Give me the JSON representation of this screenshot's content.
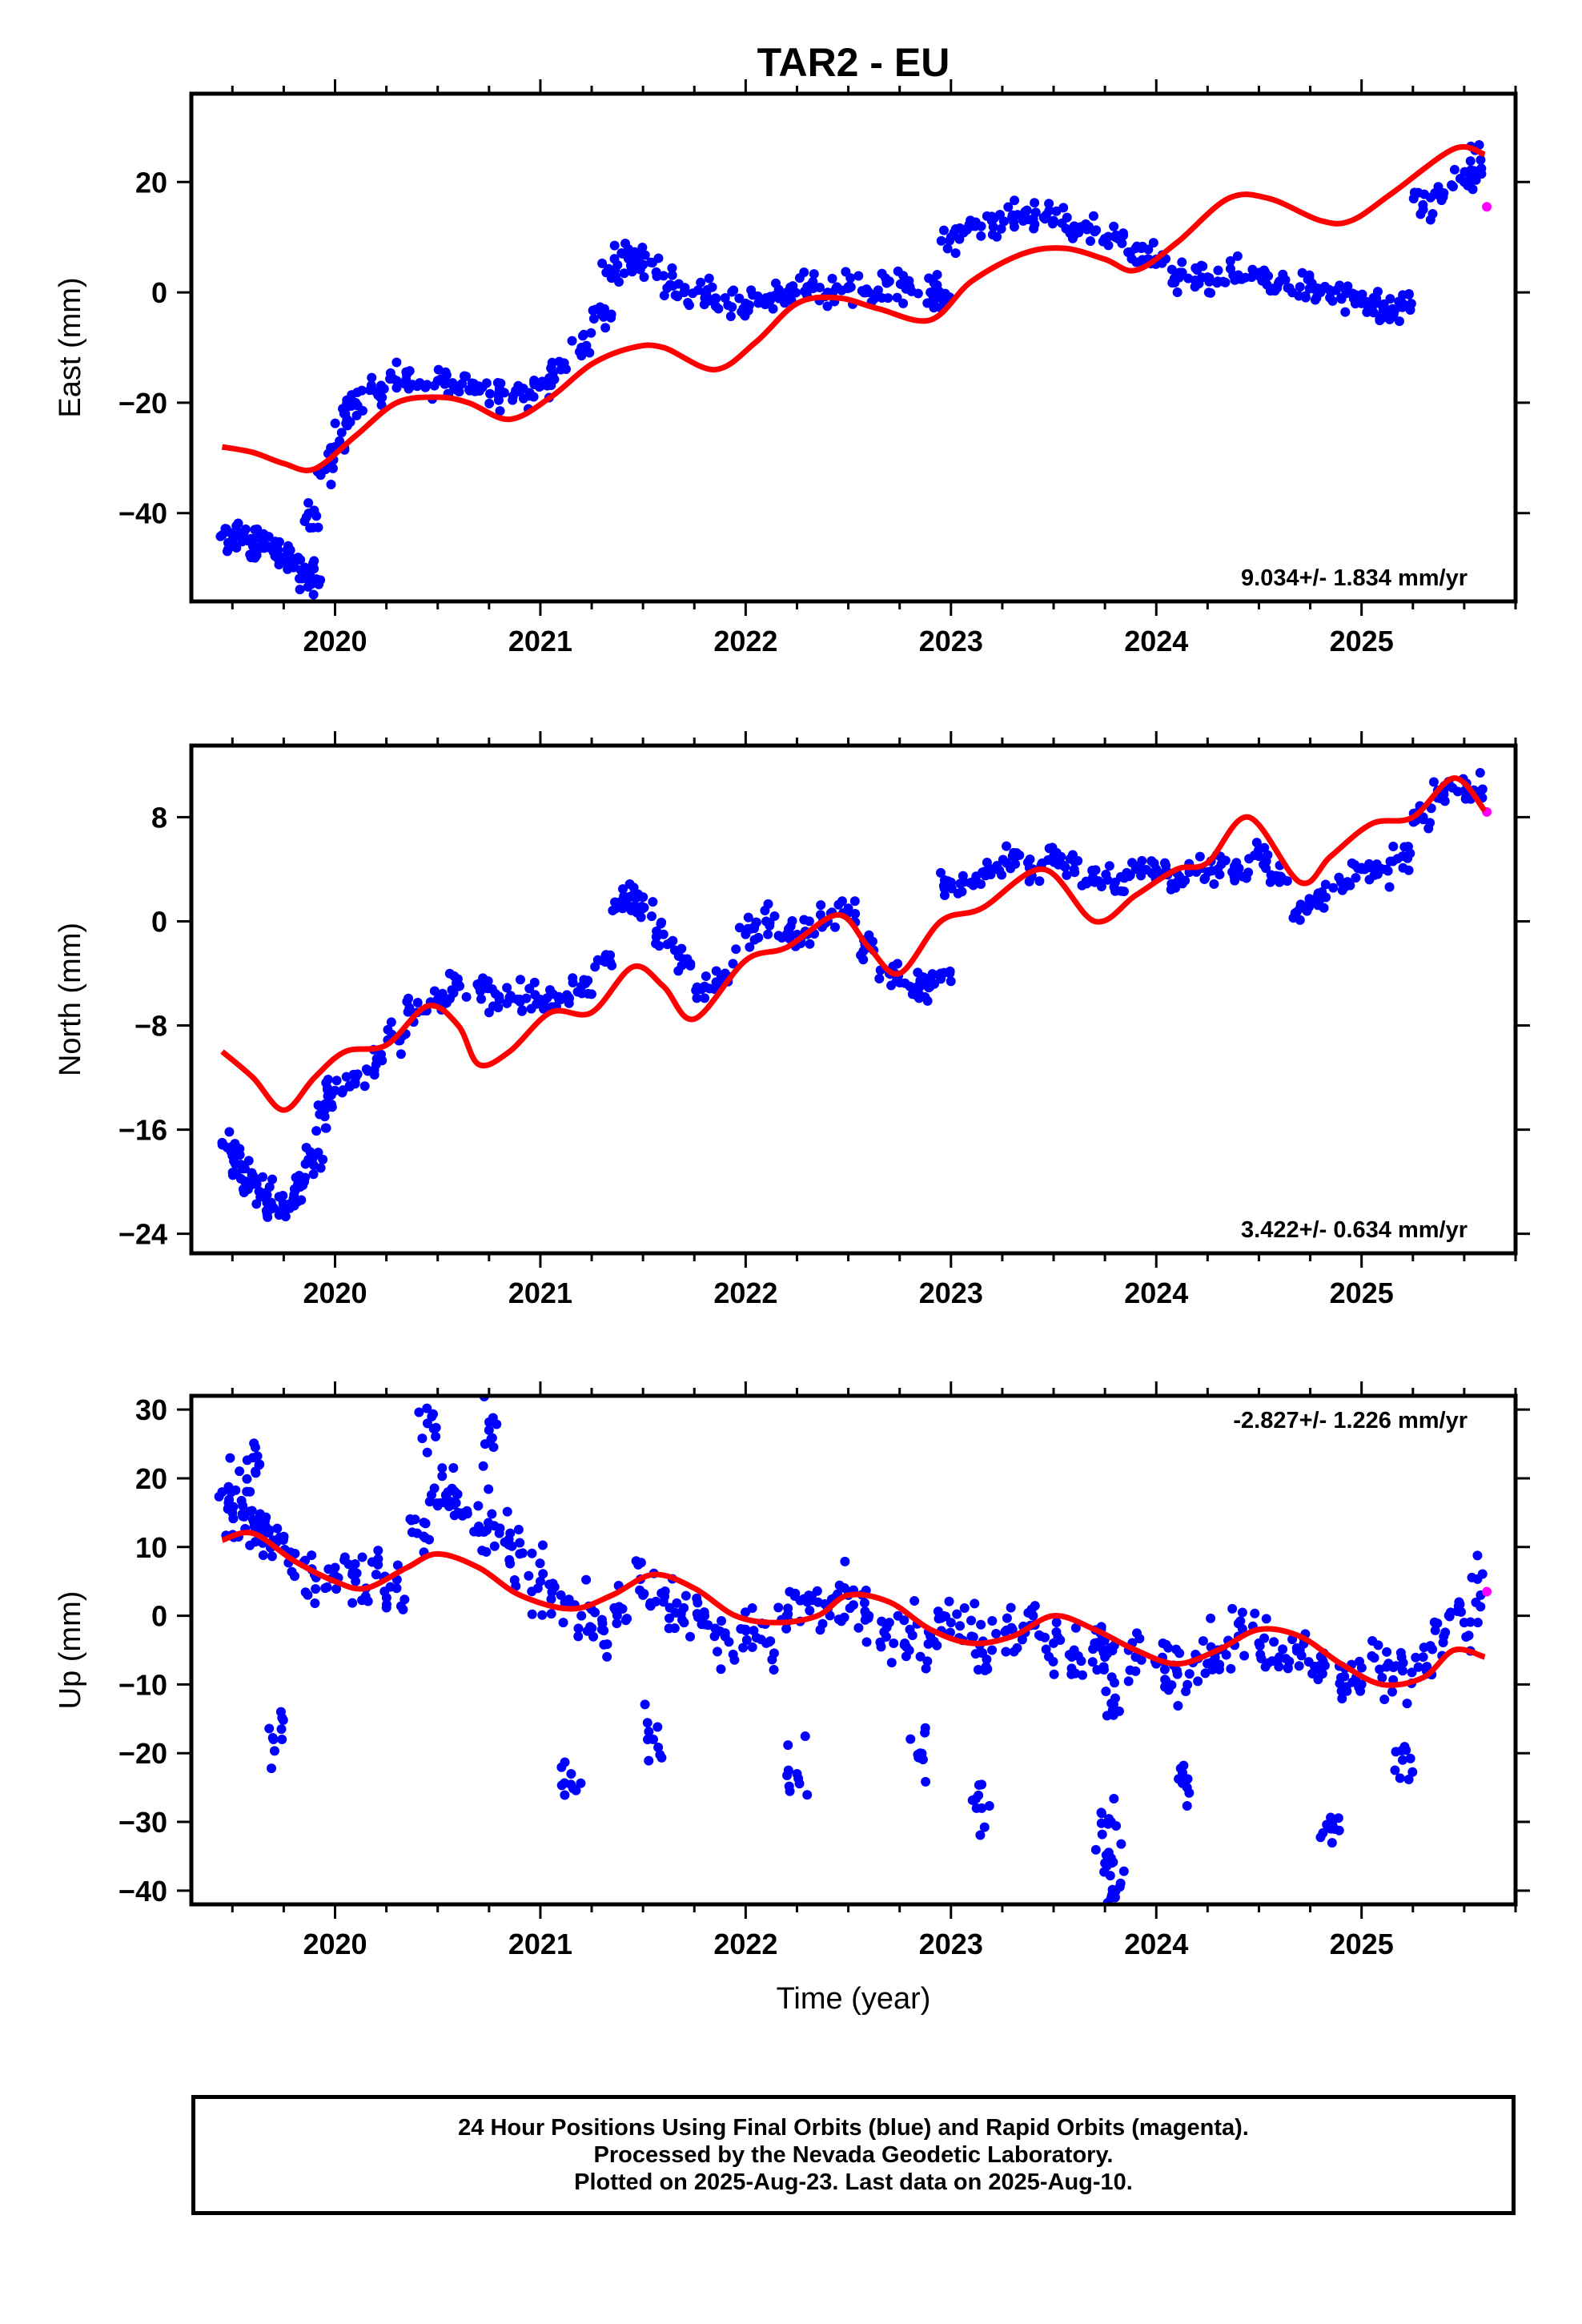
{
  "title": "TAR2 - EU",
  "colors": {
    "final": "#0000ff",
    "rapid": "#ff00ff",
    "model": "#ff0000",
    "frame": "#000000"
  },
  "chart_data": [
    {
      "type": "scatter",
      "panel": "east",
      "ylabel": "East (mm)",
      "xlabel": "",
      "xlim": [
        2019.3,
        2025.75
      ],
      "ylim": [
        -56,
        36
      ],
      "yticks": [
        -40,
        -20,
        0,
        20
      ],
      "xticks": [
        2020,
        2021,
        2022,
        2023,
        2024,
        2025
      ],
      "rate_label": "9.034+/- 1.834 mm/yr",
      "rate_position": "bottom-right",
      "series": [
        {
          "style": "points",
          "color": "final",
          "x": [
            2019.45,
            2019.5,
            2019.55,
            2019.6,
            2019.65,
            2019.7,
            2019.75,
            2019.8,
            2019.85,
            2019.88,
            2019.9,
            2019.95,
            2020.0,
            2020.05,
            2020.1,
            2020.2,
            2020.3,
            2020.4,
            2020.5,
            2020.6,
            2020.7,
            2020.8,
            2020.9,
            2021.0,
            2021.1,
            2021.2,
            2021.3,
            2021.35,
            2021.4,
            2021.45,
            2021.5,
            2021.6,
            2021.7,
            2021.8,
            2021.9,
            2022.0,
            2022.1,
            2022.2,
            2022.3,
            2022.4,
            2022.5,
            2022.6,
            2022.7,
            2022.8,
            2022.9,
            2022.95,
            2023.0,
            2023.1,
            2023.2,
            2023.3,
            2023.4,
            2023.5,
            2023.6,
            2023.7,
            2023.8,
            2023.9,
            2024.0,
            2024.1,
            2024.2,
            2024.3,
            2024.4,
            2024.5,
            2024.6,
            2024.7,
            2024.8,
            2024.9,
            2025.0,
            2025.05,
            2025.1,
            2025.15,
            2025.2,
            2025.3,
            2025.4,
            2025.5,
            2025.55,
            2025.58
          ],
          "y": [
            -44,
            -45,
            -44,
            -46,
            -45,
            -47,
            -48,
            -49,
            -51,
            -52,
            -40,
            -32,
            -28,
            -22,
            -20,
            -18,
            -16,
            -17,
            -16,
            -17,
            -17,
            -18,
            -18,
            -17,
            -14,
            -10,
            -4,
            3,
            7,
            6,
            5,
            3,
            0,
            0,
            -1,
            -2,
            -1,
            0,
            1,
            0,
            1,
            0,
            2,
            1,
            0,
            -1,
            10,
            12,
            13,
            14,
            13,
            13,
            12,
            11,
            10,
            8,
            6,
            3,
            2,
            2,
            3,
            3,
            2,
            1,
            0,
            -1,
            -2,
            -3,
            -4,
            -3,
            -2,
            15,
            18,
            20,
            22,
            24
          ]
        },
        {
          "style": "points",
          "color": "rapid",
          "x": [
            2025.61
          ],
          "y": [
            15.5
          ]
        },
        {
          "style": "line",
          "color": "model",
          "x": [
            2019.45,
            2019.6,
            2019.75,
            2019.9,
            2020.1,
            2020.3,
            2020.5,
            2020.65,
            2020.85,
            2021.05,
            2021.25,
            2021.45,
            2021.6,
            2021.85,
            2022.05,
            2022.25,
            2022.45,
            2022.65,
            2022.9,
            2023.1,
            2023.35,
            2023.55,
            2023.75,
            2023.9,
            2024.1,
            2024.35,
            2024.55,
            2024.8,
            2024.95,
            2025.15,
            2025.45,
            2025.6
          ],
          "y": [
            -28,
            -29,
            -31,
            -32,
            -26,
            -20,
            -19,
            -20,
            -23,
            -19,
            -13,
            -10,
            -10,
            -14,
            -9,
            -2,
            -1,
            -3,
            -5,
            2,
            7,
            8,
            6,
            4,
            9,
            17,
            17,
            13,
            13,
            18,
            26,
            25
          ]
        }
      ]
    },
    {
      "type": "scatter",
      "panel": "north",
      "ylabel": "North (mm)",
      "xlabel": "",
      "xlim": [
        2019.3,
        2025.75
      ],
      "ylim": [
        -25.5,
        13.5
      ],
      "yticks": [
        -24,
        -16,
        -8,
        0,
        8
      ],
      "xticks": [
        2020,
        2021,
        2022,
        2023,
        2024,
        2025
      ],
      "rate_label": "3.422+/- 0.634 mm/yr",
      "rate_position": "bottom-right",
      "series": [
        {
          "style": "points",
          "color": "final",
          "x": [
            2019.45,
            2019.5,
            2019.55,
            2019.6,
            2019.65,
            2019.7,
            2019.75,
            2019.8,
            2019.85,
            2019.9,
            2019.95,
            2020.0,
            2020.1,
            2020.2,
            2020.3,
            2020.4,
            2020.5,
            2020.6,
            2020.7,
            2020.8,
            2020.9,
            2021.0,
            2021.1,
            2021.2,
            2021.3,
            2021.4,
            2021.45,
            2021.5,
            2021.6,
            2021.7,
            2021.8,
            2021.9,
            2022.0,
            2022.1,
            2022.2,
            2022.3,
            2022.4,
            2022.5,
            2022.6,
            2022.7,
            2022.8,
            2022.85,
            2022.95,
            2023.0,
            2023.1,
            2023.2,
            2023.3,
            2023.4,
            2023.5,
            2023.6,
            2023.7,
            2023.8,
            2023.9,
            2024.0,
            2024.1,
            2024.2,
            2024.3,
            2024.4,
            2024.5,
            2024.6,
            2024.7,
            2024.8,
            2024.9,
            2025.0,
            2025.1,
            2025.2,
            2025.3,
            2025.4,
            2025.5,
            2025.58
          ],
          "y": [
            -17,
            -18,
            -19,
            -20,
            -21,
            -22,
            -22,
            -21,
            -20,
            -18,
            -15,
            -13,
            -12,
            -11,
            -9,
            -7,
            -6,
            -5,
            -5,
            -6,
            -6,
            -6,
            -6,
            -5,
            -3,
            1,
            2,
            1,
            -1,
            -3,
            -5,
            -4,
            -1,
            0,
            -1,
            -1,
            0,
            1,
            -2,
            -4,
            -5,
            -5,
            -4,
            3,
            3,
            4,
            5,
            4,
            5,
            4,
            3,
            3,
            4,
            4,
            3,
            4,
            4,
            4,
            5,
            3,
            1,
            2,
            3,
            4,
            4,
            5,
            8,
            10,
            10,
            10
          ]
        },
        {
          "style": "points",
          "color": "rapid",
          "x": [
            2025.61
          ],
          "y": [
            8.4
          ]
        },
        {
          "style": "line",
          "color": "model",
          "x": [
            2019.45,
            2019.6,
            2019.75,
            2019.9,
            2020.05,
            2020.25,
            2020.45,
            2020.6,
            2020.7,
            2020.85,
            2021.05,
            2021.25,
            2021.45,
            2021.6,
            2021.75,
            2022.0,
            2022.2,
            2022.45,
            2022.6,
            2022.75,
            2022.95,
            2023.15,
            2023.45,
            2023.7,
            2023.9,
            2024.1,
            2024.25,
            2024.45,
            2024.7,
            2024.85,
            2025.05,
            2025.25,
            2025.45,
            2025.6
          ],
          "y": [
            -10,
            -12,
            -14.5,
            -12,
            -10,
            -9.5,
            -6.5,
            -8,
            -11,
            -10,
            -7,
            -7,
            -3.5,
            -5,
            -7.5,
            -3,
            -2,
            0.5,
            -2,
            -4,
            0,
            1,
            4,
            0,
            2,
            4,
            4.5,
            8,
            3,
            5,
            7.5,
            8,
            11,
            8.5
          ]
        }
      ]
    },
    {
      "type": "scatter",
      "panel": "up",
      "ylabel": "Up (mm)",
      "xlabel": "Time (year)",
      "xlim": [
        2019.3,
        2025.75
      ],
      "ylim": [
        -42,
        32
      ],
      "yticks": [
        -40,
        -30,
        -20,
        -10,
        0,
        10,
        20,
        30
      ],
      "xticks": [
        2020,
        2021,
        2022,
        2023,
        2024,
        2025
      ],
      "rate_label": "-2.827+/- 1.226 mm/yr",
      "rate_position": "top-right",
      "series": [
        {
          "style": "points",
          "color": "final",
          "x": [
            2019.45,
            2019.5,
            2019.55,
            2019.6,
            2019.65,
            2019.7,
            2019.8,
            2019.9,
            2020.0,
            2020.1,
            2020.2,
            2020.3,
            2020.4,
            2020.5,
            2020.55,
            2020.6,
            2020.7,
            2020.8,
            2020.9,
            2021.0,
            2021.1,
            2021.2,
            2021.3,
            2021.4,
            2021.5,
            2021.6,
            2021.7,
            2021.8,
            2021.9,
            2022.0,
            2022.1,
            2022.2,
            2022.3,
            2022.4,
            2022.5,
            2022.6,
            2022.7,
            2022.8,
            2022.9,
            2023.0,
            2023.1,
            2023.2,
            2023.3,
            2023.4,
            2023.5,
            2023.6,
            2023.7,
            2023.75,
            2023.8,
            2023.9,
            2024.0,
            2024.1,
            2024.2,
            2024.3,
            2024.4,
            2024.5,
            2024.6,
            2024.7,
            2024.8,
            2024.9,
            2025.0,
            2025.1,
            2025.2,
            2025.3,
            2025.4,
            2025.5,
            2025.58,
            2019.6,
            2019.7,
            2020.45,
            2020.75,
            2021.15,
            2021.55,
            2022.25,
            2022.85,
            2023.15,
            2023.8,
            2024.15,
            2024.85,
            2025.2,
            2023.75,
            2023.78
          ],
          "y": [
            18,
            15,
            16,
            14,
            12,
            11,
            9,
            6,
            7,
            5,
            6,
            4,
            12,
            16,
            18,
            15,
            13,
            12,
            9,
            5,
            3,
            0,
            -2,
            1,
            3,
            2,
            -1,
            0,
            -3,
            -2,
            -4,
            0,
            2,
            1,
            3,
            0,
            -1,
            -2,
            -3,
            -1,
            -3,
            -5,
            -2,
            0,
            -4,
            -5,
            -4,
            -6,
            -12,
            -6,
            -7,
            -8,
            -6,
            -5,
            -3,
            -4,
            -6,
            -5,
            -8,
            -9,
            -10,
            -9,
            -8,
            -6,
            -3,
            -1,
            3,
            23,
            -18,
            28,
            27,
            -23,
            -18,
            -23,
            -20,
            -28,
            -41,
            -25,
            -31,
            -21,
            -36,
            -30
          ]
        },
        {
          "style": "points",
          "color": "rapid",
          "x": [
            2025.61
          ],
          "y": [
            3.5
          ]
        },
        {
          "style": "line",
          "color": "model",
          "x": [
            2019.45,
            2019.6,
            2019.8,
            2020.0,
            2020.15,
            2020.35,
            2020.5,
            2020.7,
            2020.9,
            2021.15,
            2021.35,
            2021.55,
            2021.75,
            2021.95,
            2022.15,
            2022.35,
            2022.5,
            2022.7,
            2022.9,
            2023.1,
            2023.3,
            2023.5,
            2023.7,
            2023.9,
            2024.1,
            2024.3,
            2024.5,
            2024.7,
            2024.9,
            2025.1,
            2025.3,
            2025.45,
            2025.6
          ],
          "y": [
            11,
            12,
            8,
            5,
            4,
            7,
            9,
            7,
            3,
            1,
            3,
            6,
            4,
            0,
            -1,
            0,
            3,
            2,
            -2,
            -4,
            -3,
            0,
            -2,
            -5,
            -7,
            -5,
            -2,
            -3,
            -7,
            -10,
            -9,
            -5,
            -6
          ]
        }
      ]
    }
  ],
  "caption": {
    "line1": "24 Hour Positions Using Final Orbits (blue) and Rapid Orbits (magenta).",
    "line2": "Processed by the Nevada Geodetic Laboratory.",
    "line3": "Plotted on 2025-Aug-23. Last data on 2025-Aug-10."
  }
}
